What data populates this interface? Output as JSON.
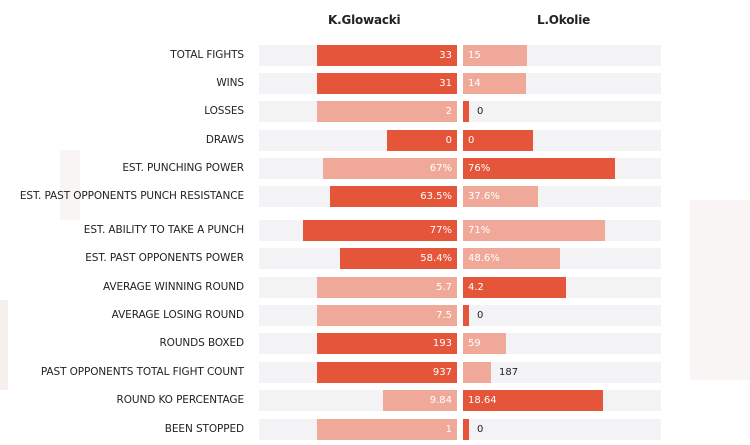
{
  "fighters": {
    "left": "K.Glowacki",
    "right": "L.Okolie"
  },
  "colors": {
    "dark": "#e5553a",
    "light": "#f0a999",
    "track": "#f3f3f5"
  },
  "chart_data": {
    "type": "bar",
    "orientation": "horizontal-diverging",
    "series": [
      {
        "name": "K.Glowacki",
        "side": "left"
      },
      {
        "name": "L.Okolie",
        "side": "right"
      }
    ],
    "rows": [
      {
        "label": "TOTAL FIGHTS",
        "left": {
          "value": 33,
          "text": "33",
          "highlight": true
        },
        "right": {
          "value": 15,
          "text": "15",
          "highlight": false
        },
        "scale": 33
      },
      {
        "label": "WINS",
        "left": {
          "value": 31,
          "text": "31",
          "highlight": true
        },
        "right": {
          "value": 14,
          "text": "14",
          "highlight": false
        },
        "scale": 31
      },
      {
        "label": "LOSSES",
        "left": {
          "value": 2,
          "text": "2",
          "highlight": false
        },
        "right": {
          "value": 0,
          "text": "0",
          "highlight": true
        },
        "scale": 2
      },
      {
        "label": "DRAWS",
        "left": {
          "value": 0,
          "text": "0",
          "highlight": true
        },
        "right": {
          "value": 0,
          "text": "0",
          "highlight": true
        },
        "scale": 0
      },
      {
        "label": "EST. PUNCHING POWER",
        "left": {
          "value": 67,
          "text": "67%",
          "highlight": false
        },
        "right": {
          "value": 76,
          "text": "76%",
          "highlight": true
        },
        "scale": 100
      },
      {
        "label": "EST. PAST OPPONENTS PUNCH RESISTANCE",
        "left": {
          "value": 63.5,
          "text": "63.5%",
          "highlight": true
        },
        "right": {
          "value": 37.6,
          "text": "37.6%",
          "highlight": false
        },
        "scale": 100
      },
      {
        "label": "EST. ABILITY TO TAKE A PUNCH",
        "left": {
          "value": 77,
          "text": "77%",
          "highlight": true
        },
        "right": {
          "value": 71,
          "text": "71%",
          "highlight": false
        },
        "scale": 100
      },
      {
        "label": "EST. PAST OPPONENTS POWER",
        "left": {
          "value": 58.4,
          "text": "58.4%",
          "highlight": true
        },
        "right": {
          "value": 48.6,
          "text": "48.6%",
          "highlight": false
        },
        "scale": 100
      },
      {
        "label": "AVERAGE WINNING ROUND",
        "left": {
          "value": 5.7,
          "text": "5.7",
          "highlight": false
        },
        "right": {
          "value": 4.2,
          "text": "4.2",
          "highlight": true
        },
        "scale": 5.7
      },
      {
        "label": "AVERAGE LOSING ROUND",
        "left": {
          "value": 7.5,
          "text": "7.5",
          "highlight": false
        },
        "right": {
          "value": 0,
          "text": "0",
          "highlight": true
        },
        "scale": 7.5
      },
      {
        "label": "ROUNDS BOXED",
        "left": {
          "value": 193,
          "text": "193",
          "highlight": true
        },
        "right": {
          "value": 59,
          "text": "59",
          "highlight": false
        },
        "scale": 193
      },
      {
        "label": "PAST OPPONENTS TOTAL FIGHT COUNT",
        "left": {
          "value": 937,
          "text": "937",
          "highlight": true
        },
        "right": {
          "value": 187,
          "text": "187",
          "highlight": false
        },
        "scale": 937
      },
      {
        "label": "ROUND KO PERCENTAGE",
        "left": {
          "value": 9.84,
          "text": "9.84",
          "highlight": false
        },
        "right": {
          "value": 18.64,
          "text": "18.64",
          "highlight": true
        },
        "scale": 18.64
      },
      {
        "label": "BEEN STOPPED",
        "left": {
          "value": 1,
          "text": "1",
          "highlight": false
        },
        "right": {
          "value": 0,
          "text": "0",
          "highlight": true
        },
        "scale": 1
      }
    ]
  }
}
